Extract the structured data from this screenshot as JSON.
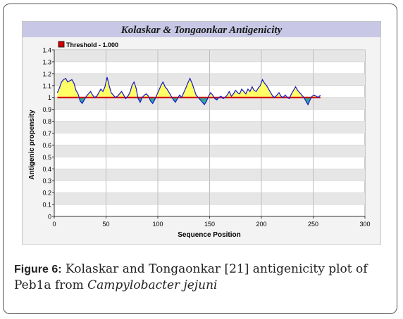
{
  "chart_data": {
    "type": "line",
    "title": "Kolaskar & Tongaonkar Antigenicity",
    "xlabel": "Sequence Position",
    "ylabel": "Antigenic propensity",
    "xlim": [
      0,
      300
    ],
    "ylim": [
      0,
      1.4
    ],
    "x_ticks": [
      0,
      50,
      100,
      150,
      200,
      250,
      300
    ],
    "y_ticks": [
      0,
      0.1,
      0.2,
      0.3,
      0.4,
      0.5,
      0.6,
      0.7,
      0.8,
      0.9,
      1,
      1.1,
      1.2,
      1.3,
      1.4
    ],
    "grid": true,
    "legend_position": "top-left",
    "threshold": {
      "label": "Threshold - 1.000",
      "value": 1.0,
      "x_range": [
        3,
        257
      ]
    },
    "series": [
      {
        "x": [
          3,
          5,
          7,
          9,
          11,
          13,
          15,
          17,
          19,
          21,
          23,
          25,
          27,
          29,
          31,
          33,
          35,
          37,
          39,
          41,
          43,
          45,
          47,
          49,
          51,
          53,
          55,
          57,
          59,
          61,
          63,
          65,
          67,
          69,
          71,
          73,
          75,
          77,
          79,
          81,
          83,
          85,
          87,
          89,
          91,
          93,
          95,
          97,
          99,
          101,
          103,
          105,
          107,
          109,
          111,
          113,
          115,
          117,
          119,
          121,
          123,
          125,
          127,
          129,
          131,
          133,
          135,
          137,
          139,
          141,
          143,
          145,
          147,
          149,
          151,
          153,
          155,
          157,
          159,
          161,
          163,
          165,
          167,
          169,
          171,
          173,
          175,
          177,
          179,
          181,
          183,
          185,
          187,
          189,
          191,
          193,
          195,
          197,
          199,
          201,
          203,
          205,
          207,
          209,
          211,
          213,
          215,
          217,
          219,
          221,
          223,
          225,
          227,
          229,
          231,
          233,
          235,
          237,
          239,
          241,
          243,
          245,
          247,
          249,
          251,
          253,
          255,
          257
        ],
        "values": [
          1.04,
          1.08,
          1.13,
          1.15,
          1.16,
          1.13,
          1.14,
          1.15,
          1.12,
          1.06,
          1.03,
          0.97,
          0.95,
          0.98,
          1.01,
          1.03,
          1.05,
          1.02,
          1.0,
          1.01,
          1.04,
          1.07,
          1.05,
          1.09,
          1.17,
          1.1,
          1.04,
          1.02,
          1.0,
          1.01,
          1.03,
          1.05,
          1.02,
          0.99,
          1.01,
          1.04,
          1.1,
          1.13,
          1.08,
          0.99,
          0.96,
          1.0,
          1.02,
          1.03,
          1.01,
          0.97,
          0.95,
          0.98,
          1.02,
          1.06,
          1.1,
          1.13,
          1.09,
          1.07,
          1.04,
          1.01,
          0.98,
          0.96,
          0.99,
          1.02,
          1.0,
          1.04,
          1.08,
          1.12,
          1.16,
          1.12,
          1.07,
          1.02,
          1.0,
          0.98,
          0.96,
          0.94,
          0.97,
          1.01,
          1.04,
          1.02,
          0.99,
          0.98,
          1.0,
          1.01,
          0.99,
          1.0,
          1.02,
          1.05,
          1.01,
          1.03,
          1.06,
          1.04,
          1.03,
          1.07,
          1.05,
          1.03,
          1.07,
          1.05,
          1.09,
          1.06,
          1.05,
          1.08,
          1.1,
          1.15,
          1.12,
          1.1,
          1.07,
          1.04,
          1.01,
          1.0,
          1.02,
          1.04,
          1.01,
          1.0,
          1.02,
          1.0,
          0.99,
          1.03,
          1.06,
          1.09,
          1.06,
          1.04,
          1.02,
          1.0,
          0.97,
          0.94,
          0.98,
          1.01,
          1.02,
          1.01,
          1.0,
          1.02
        ]
      }
    ]
  },
  "caption": {
    "label": "Figure 6:",
    "text": " Kolaskar and Tongaonkar [21] antigenicity plot of Peb1a from ",
    "species": "Campylobacter jejuni"
  },
  "colors": {
    "title_bar": "#c8c8e6",
    "plot_band_a": "#e6e6e6",
    "plot_band_b": "#ffffff",
    "line": "#1515c8",
    "threshold": "#d40000",
    "fill_above": "#ffff66",
    "fill_below": "#33aa99"
  }
}
